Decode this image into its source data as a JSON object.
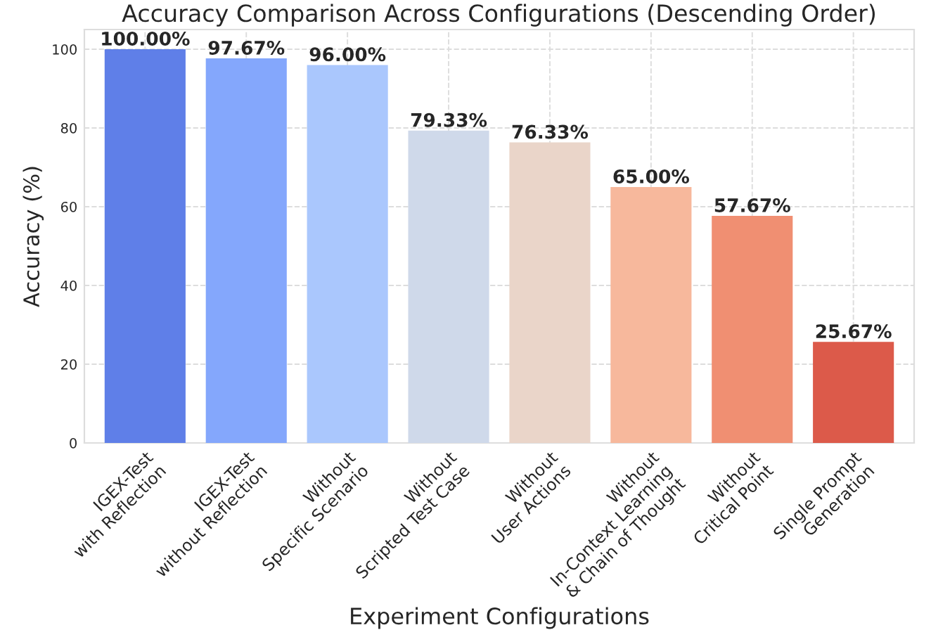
{
  "chart_data": {
    "type": "bar",
    "title": "Accuracy Comparison Across Configurations (Descending Order)",
    "xlabel": "Experiment Configurations",
    "ylabel": "Accuracy (%)",
    "categories": [
      "IGEX-Test\nwith Reflection",
      "IGEX-Test\nwithout Reflection",
      "Without\nSpecific Scenario",
      "Without\nScripted Test Case",
      "Without\nUser Actions",
      "Without\nIn-Context Learning\n& Chain of Thought",
      "Without\nCritical Point",
      "Single Prompt\nGeneration"
    ],
    "values": [
      100.0,
      97.67,
      96.0,
      79.33,
      76.33,
      65.0,
      57.67,
      25.67
    ],
    "colors": [
      "#5f7fe8",
      "#84a7fc",
      "#aac7fd",
      "#cfd9ea",
      "#ead5c9",
      "#f7b89c",
      "#f08f72",
      "#dc5a4a"
    ],
    "value_labels": [
      "100.00%",
      "97.67%",
      "96.00%",
      "79.33%",
      "76.33%",
      "65.00%",
      "57.67%",
      "25.67%"
    ],
    "ylim": [
      0,
      105
    ],
    "yticks": [
      0,
      20,
      40,
      60,
      80,
      100
    ],
    "grid": true
  }
}
